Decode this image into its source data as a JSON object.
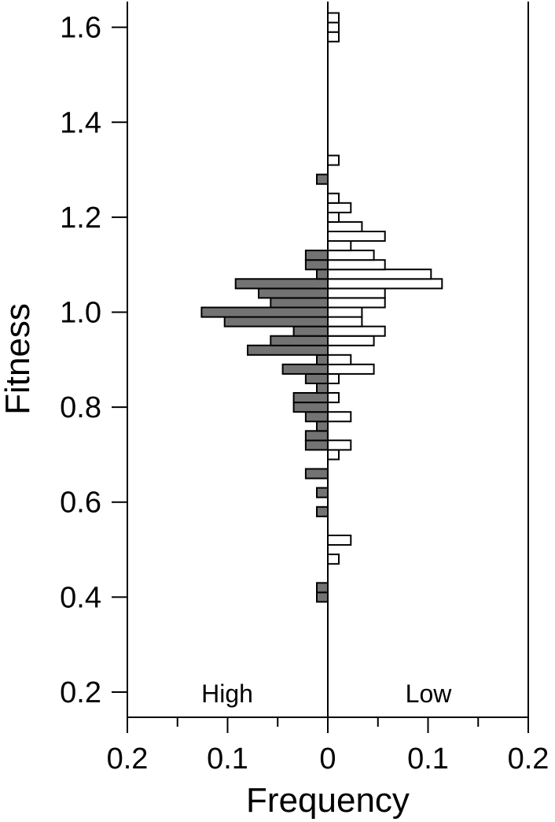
{
  "chart_data": {
    "type": "bar",
    "orientation": "horizontal",
    "layout": "back-to-back histogram",
    "ylabel": "Fitness",
    "xlabel": "Frequency",
    "ylim": [
      0.15,
      1.66
    ],
    "xlim_each_side": [
      0,
      0.2
    ],
    "y_ticks": [
      0.2,
      0.4,
      0.6,
      0.8,
      1.0,
      1.2,
      1.4,
      1.6
    ],
    "y_tick_labels": [
      "0.2",
      "0.4",
      "0.6",
      "0.8",
      "1.0",
      "1.2",
      "1.4",
      "1.6"
    ],
    "x_tick_labels": [
      {
        "label": "0.2",
        "value": -0.2
      },
      {
        "label": "0.1",
        "value": -0.1
      },
      {
        "label": "0",
        "value": 0
      },
      {
        "label": "0.1",
        "value": 0.1
      },
      {
        "label": "0.2",
        "value": 0.2
      }
    ],
    "x_minor_ticks": [
      -0.15,
      -0.05,
      0.05,
      0.15
    ],
    "bin_width": 0.02,
    "grid": false,
    "legend": "none",
    "series": [
      {
        "name": "High",
        "side": "left",
        "color": "#737373",
        "bins": [
          {
            "y": 0.4,
            "value": 0.011
          },
          {
            "y": 0.42,
            "value": 0.011
          },
          {
            "y": 0.58,
            "value": 0.011
          },
          {
            "y": 0.62,
            "value": 0.011
          },
          {
            "y": 0.66,
            "value": 0.022
          },
          {
            "y": 0.72,
            "value": 0.022
          },
          {
            "y": 0.74,
            "value": 0.022
          },
          {
            "y": 0.76,
            "value": 0.011
          },
          {
            "y": 0.78,
            "value": 0.022
          },
          {
            "y": 0.8,
            "value": 0.034
          },
          {
            "y": 0.82,
            "value": 0.034
          },
          {
            "y": 0.84,
            "value": 0.011
          },
          {
            "y": 0.86,
            "value": 0.022
          },
          {
            "y": 0.88,
            "value": 0.045
          },
          {
            "y": 0.9,
            "value": 0.011
          },
          {
            "y": 0.92,
            "value": 0.08
          },
          {
            "y": 0.94,
            "value": 0.057
          },
          {
            "y": 0.96,
            "value": 0.034
          },
          {
            "y": 0.98,
            "value": 0.103
          },
          {
            "y": 1.0,
            "value": 0.126
          },
          {
            "y": 1.02,
            "value": 0.057
          },
          {
            "y": 1.04,
            "value": 0.069
          },
          {
            "y": 1.06,
            "value": 0.092
          },
          {
            "y": 1.08,
            "value": 0.011
          },
          {
            "y": 1.1,
            "value": 0.022
          },
          {
            "y": 1.12,
            "value": 0.022
          },
          {
            "y": 1.28,
            "value": 0.011
          }
        ]
      },
      {
        "name": "Low",
        "side": "right",
        "color": "#ffffff",
        "bins": [
          {
            "y": 0.48,
            "value": 0.011
          },
          {
            "y": 0.52,
            "value": 0.023
          },
          {
            "y": 0.7,
            "value": 0.011
          },
          {
            "y": 0.72,
            "value": 0.023
          },
          {
            "y": 0.78,
            "value": 0.023
          },
          {
            "y": 0.82,
            "value": 0.011
          },
          {
            "y": 0.86,
            "value": 0.011
          },
          {
            "y": 0.88,
            "value": 0.046
          },
          {
            "y": 0.9,
            "value": 0.023
          },
          {
            "y": 0.94,
            "value": 0.046
          },
          {
            "y": 0.96,
            "value": 0.057
          },
          {
            "y": 0.98,
            "value": 0.034
          },
          {
            "y": 1.0,
            "value": 0.034
          },
          {
            "y": 1.02,
            "value": 0.057
          },
          {
            "y": 1.04,
            "value": 0.057
          },
          {
            "y": 1.06,
            "value": 0.114
          },
          {
            "y": 1.08,
            "value": 0.103
          },
          {
            "y": 1.1,
            "value": 0.057
          },
          {
            "y": 1.12,
            "value": 0.046
          },
          {
            "y": 1.14,
            "value": 0.023
          },
          {
            "y": 1.16,
            "value": 0.057
          },
          {
            "y": 1.18,
            "value": 0.034
          },
          {
            "y": 1.2,
            "value": 0.011
          },
          {
            "y": 1.22,
            "value": 0.023
          },
          {
            "y": 1.24,
            "value": 0.011
          },
          {
            "y": 1.32,
            "value": 0.011
          },
          {
            "y": 1.58,
            "value": 0.011
          },
          {
            "y": 1.6,
            "value": 0.011
          },
          {
            "y": 1.62,
            "value": 0.011
          }
        ]
      }
    ]
  }
}
